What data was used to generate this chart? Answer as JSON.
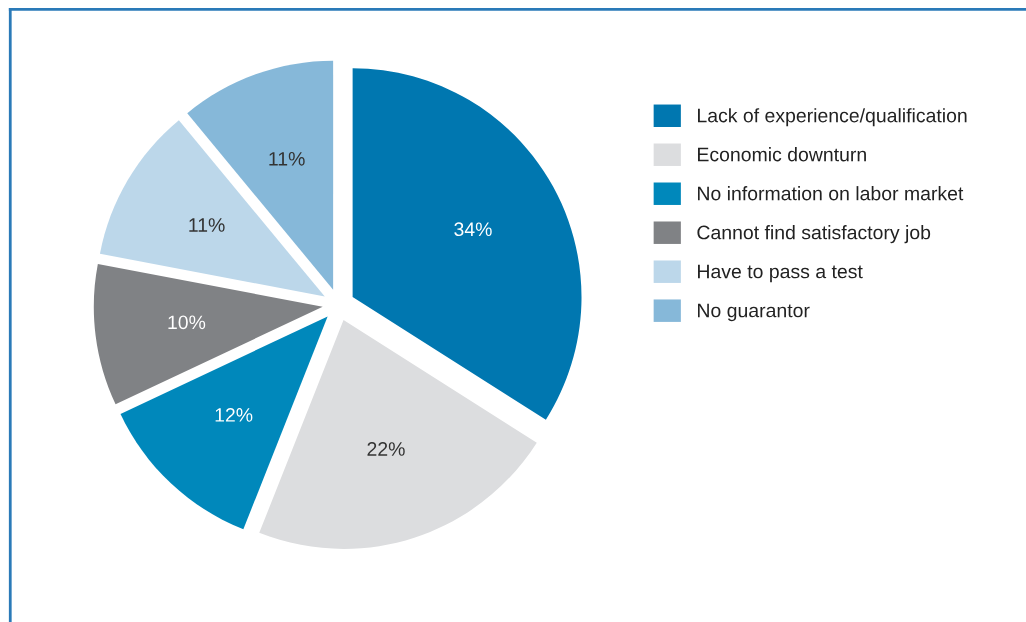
{
  "chart_data": {
    "type": "pie",
    "categories": [
      "Lack of experience/qualification",
      "Economic downturn",
      "No information on labor market",
      "Cannot find satisfactory job",
      "Have to pass a test",
      "No guarantor"
    ],
    "values": [
      34,
      22,
      12,
      10,
      11,
      11
    ],
    "colors": [
      "#0077b0",
      "#dcdddf",
      "#0088bb",
      "#808285",
      "#bcd7ea",
      "#86b8d9"
    ],
    "value_labels": [
      "34%",
      "22%",
      "12%",
      "10%",
      "11%",
      "11%"
    ],
    "legend": "right"
  }
}
